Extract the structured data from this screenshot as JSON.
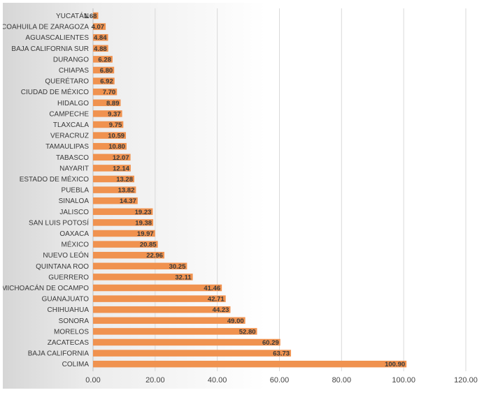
{
  "chart_data": {
    "type": "bar",
    "orientation": "horizontal",
    "title": "",
    "xlabel": "",
    "ylabel": "",
    "xlim": [
      0,
      120
    ],
    "x_ticks": [
      "0.00",
      "20.00",
      "40.00",
      "60.00",
      "80.00",
      "100.00",
      "120.00"
    ],
    "grid": "vertical",
    "legend": "none",
    "bar_color": "#f0924f",
    "categories": [
      "YUCATÁN",
      "COAHUILA DE ZARAGOZA",
      "AGUASCALIENTES",
      "BAJA CALIFORNIA SUR",
      "DURANGO",
      "CHIAPAS",
      "QUERÉTARO",
      "CIUDAD DE MÉXICO",
      "HIDALGO",
      "CAMPECHE",
      "TLAXCALA",
      "VERACRUZ",
      "TAMAULIPAS",
      "TABASCO",
      "NAYARIT",
      "ESTADO DE MÉXICO",
      "PUEBLA",
      "SINALOA",
      "JALISCO",
      "SAN LUIS POTOSÍ",
      "OAXACA",
      "MÉXICO",
      "NUEVO LEÓN",
      "QUINTANA ROO",
      "GUERRERO",
      "MICHOACÁN DE OCAMPO",
      "GUANAJUATO",
      "CHIHUAHUA",
      "SONORA",
      "MORELOS",
      "ZACATECAS",
      "BAJA CALIFORNIA",
      "COLIMA"
    ],
    "values": [
      1.68,
      4.07,
      4.84,
      4.88,
      6.28,
      6.8,
      6.92,
      7.7,
      8.89,
      9.37,
      9.75,
      10.59,
      10.8,
      12.07,
      12.14,
      13.28,
      13.82,
      14.37,
      19.23,
      19.38,
      19.97,
      20.85,
      22.96,
      30.25,
      32.11,
      41.46,
      42.71,
      44.23,
      49.0,
      52.8,
      60.29,
      63.73,
      100.9
    ],
    "value_labels": [
      "1.68",
      "4.07",
      "4.84",
      "4.88",
      "6.28",
      "6.80",
      "6.92",
      "7.70",
      "8.89",
      "9.37",
      "9.75",
      "10.59",
      "10.80",
      "12.07",
      "12.14",
      "13.28",
      "13.82",
      "14.37",
      "19.23",
      "19.38",
      "19.97",
      "20.85",
      "22.96",
      "30.25",
      "32.11",
      "41.46",
      "42.71",
      "44.23",
      "49.00",
      "52.80",
      "60.29",
      "63.73",
      "100.90"
    ]
  }
}
